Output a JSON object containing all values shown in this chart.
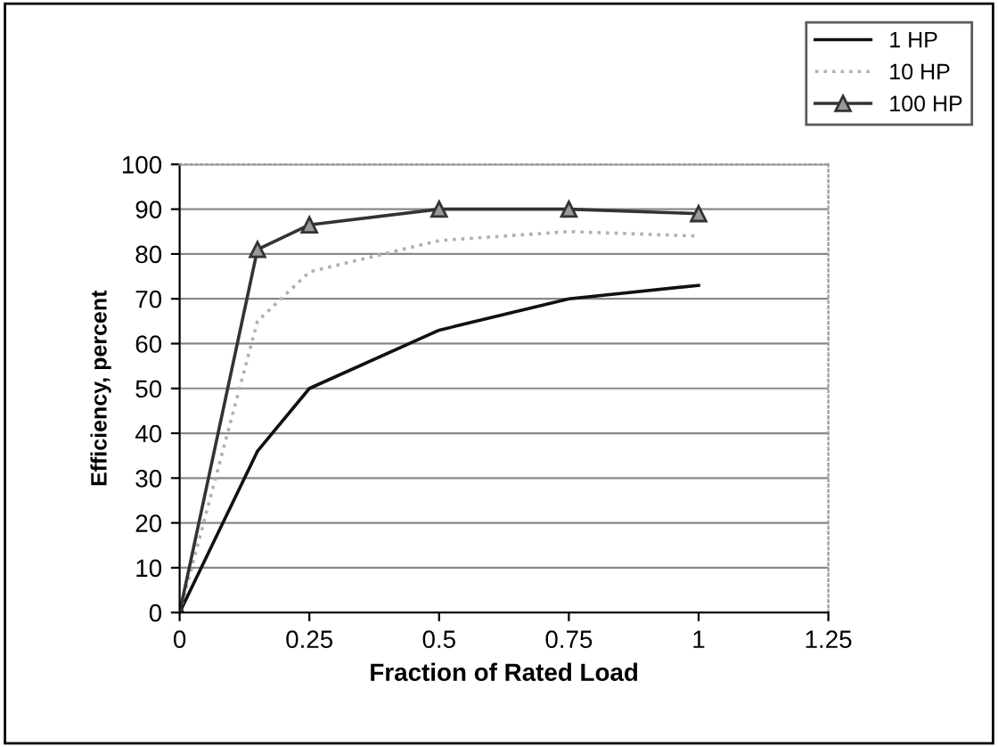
{
  "chart_data": {
    "type": "line",
    "xlabel": "Fraction of Rated Load",
    "ylabel": "Efficiency, percent",
    "x": [
      0,
      0.15,
      0.25,
      0.5,
      0.75,
      1
    ],
    "series": [
      {
        "name": "1 HP",
        "color": "#111111",
        "values": [
          0,
          36,
          50,
          63,
          70,
          73
        ],
        "marker": "none",
        "line_style": "solid"
      },
      {
        "name": "10 HP",
        "color": "#b0b0b0",
        "values": [
          0,
          65,
          76,
          83,
          85,
          84
        ],
        "marker": "none",
        "line_style": "dotted"
      },
      {
        "name": "100 HP",
        "color": "#333333",
        "values": [
          0,
          81,
          86.5,
          90,
          90,
          89
        ],
        "marker": "triangle",
        "line_style": "solid"
      }
    ],
    "xlim": [
      0,
      1.25
    ],
    "xticks": [
      0,
      0.25,
      0.5,
      0.75,
      1,
      1.25
    ],
    "ylim": [
      0,
      100
    ],
    "yticks": [
      0,
      10,
      20,
      30,
      40,
      50,
      60,
      70,
      80,
      90,
      100
    ],
    "grid": "y",
    "legend": "top right"
  }
}
